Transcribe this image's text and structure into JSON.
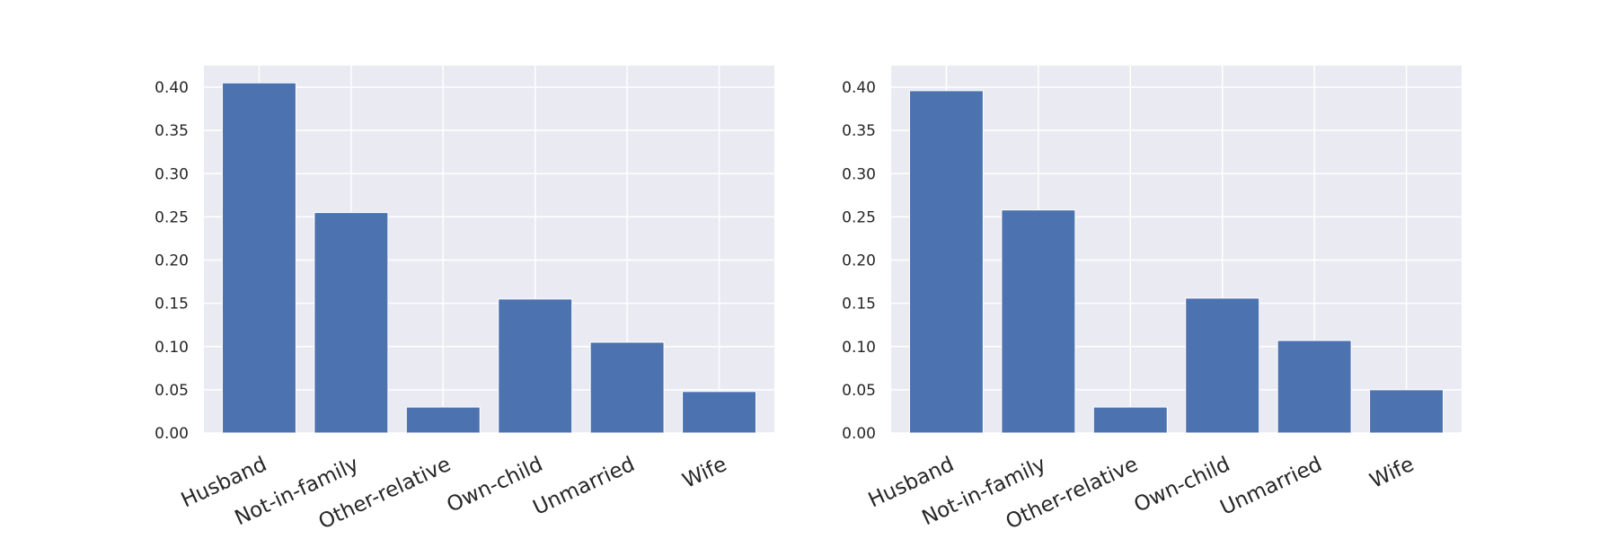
{
  "chart_data": [
    {
      "type": "bar",
      "title": "",
      "xlabel": "",
      "ylabel": "",
      "categories": [
        "Husband",
        "Not-in-family",
        "Other-relative",
        "Own-child",
        "Unmarried",
        "Wife"
      ],
      "values": [
        0.405,
        0.255,
        0.03,
        0.155,
        0.105,
        0.048
      ],
      "ylim": [
        0,
        0.425
      ],
      "yticks": [
        "0.00",
        "0.05",
        "0.10",
        "0.15",
        "0.20",
        "0.25",
        "0.30",
        "0.35",
        "0.40"
      ],
      "grid": true,
      "bar_color": "#4c72b0",
      "background_color": "#eaeaf2"
    },
    {
      "type": "bar",
      "title": "",
      "xlabel": "",
      "ylabel": "",
      "categories": [
        "Husband",
        "Not-in-family",
        "Other-relative",
        "Own-child",
        "Unmarried",
        "Wife"
      ],
      "values": [
        0.396,
        0.258,
        0.03,
        0.156,
        0.107,
        0.05
      ],
      "ylim": [
        0,
        0.425
      ],
      "yticks": [
        "0.00",
        "0.05",
        "0.10",
        "0.15",
        "0.20",
        "0.25",
        "0.30",
        "0.35",
        "0.40"
      ],
      "grid": true,
      "bar_color": "#4c72b0",
      "background_color": "#eaeaf2"
    }
  ]
}
